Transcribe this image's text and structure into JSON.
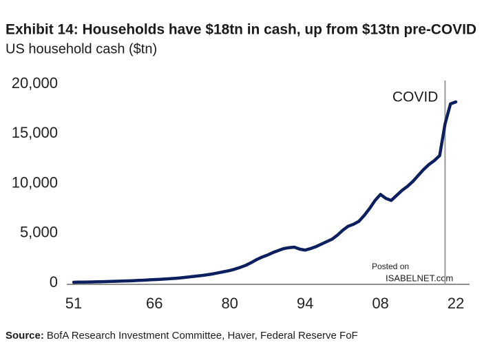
{
  "chart_data": {
    "type": "line",
    "title": "Exhibit 14: Households have $18tn in cash, up from $13tn pre-COVID",
    "subtitle": "US household cash ($tn)",
    "source_label": "Source:",
    "source": "BofA Research Investment Committee, Haver, Federal Reserve FoF",
    "watermark": [
      "Posted on",
      "ISABELNET.com"
    ],
    "categories": [
      "51",
      null,
      null,
      null,
      null,
      null,
      null,
      null,
      null,
      null,
      null,
      null,
      null,
      null,
      null,
      "66",
      null,
      null,
      null,
      null,
      null,
      null,
      null,
      null,
      null,
      null,
      null,
      null,
      null,
      "80",
      null,
      null,
      null,
      null,
      null,
      null,
      null,
      null,
      null,
      null,
      null,
      null,
      null,
      "94",
      null,
      null,
      null,
      null,
      null,
      null,
      null,
      null,
      null,
      null,
      null,
      null,
      null,
      "08",
      null,
      null,
      null,
      null,
      null,
      null,
      null,
      null,
      null,
      null,
      null,
      null,
      null,
      "22"
    ],
    "series": [
      {
        "name": "US household cash",
        "color": "#0c1f5e",
        "values": [
          70,
          80,
          90,
          100,
          110,
          125,
          140,
          155,
          170,
          190,
          210,
          230,
          255,
          280,
          310,
          340,
          370,
          400,
          430,
          470,
          520,
          580,
          640,
          700,
          760,
          840,
          930,
          1030,
          1140,
          1250,
          1400,
          1580,
          1780,
          2050,
          2350,
          2600,
          2800,
          3050,
          3250,
          3450,
          3550,
          3600,
          3400,
          3300,
          3450,
          3650,
          3900,
          4150,
          4400,
          4800,
          5300,
          5700,
          5900,
          6200,
          6800,
          7500,
          8300,
          8900,
          8500,
          8300,
          8800,
          9300,
          9700,
          10200,
          10800,
          11400,
          11900,
          12300,
          12800,
          16000,
          18000,
          18200
        ]
      }
    ],
    "annotations": [
      {
        "text": "COVID",
        "x": 69,
        "color": "#9a9a9a"
      }
    ],
    "ylim": [
      0,
      20000
    ],
    "yticks": [
      0,
      {
        "value": 5000,
        "label": "5,000"
      },
      {
        "value": 10000,
        "label": "10,000"
      },
      {
        "value": 15000,
        "label": "15,000"
      },
      {
        "value": 20000,
        "label": "20,000"
      }
    ],
    "grid": false
  }
}
